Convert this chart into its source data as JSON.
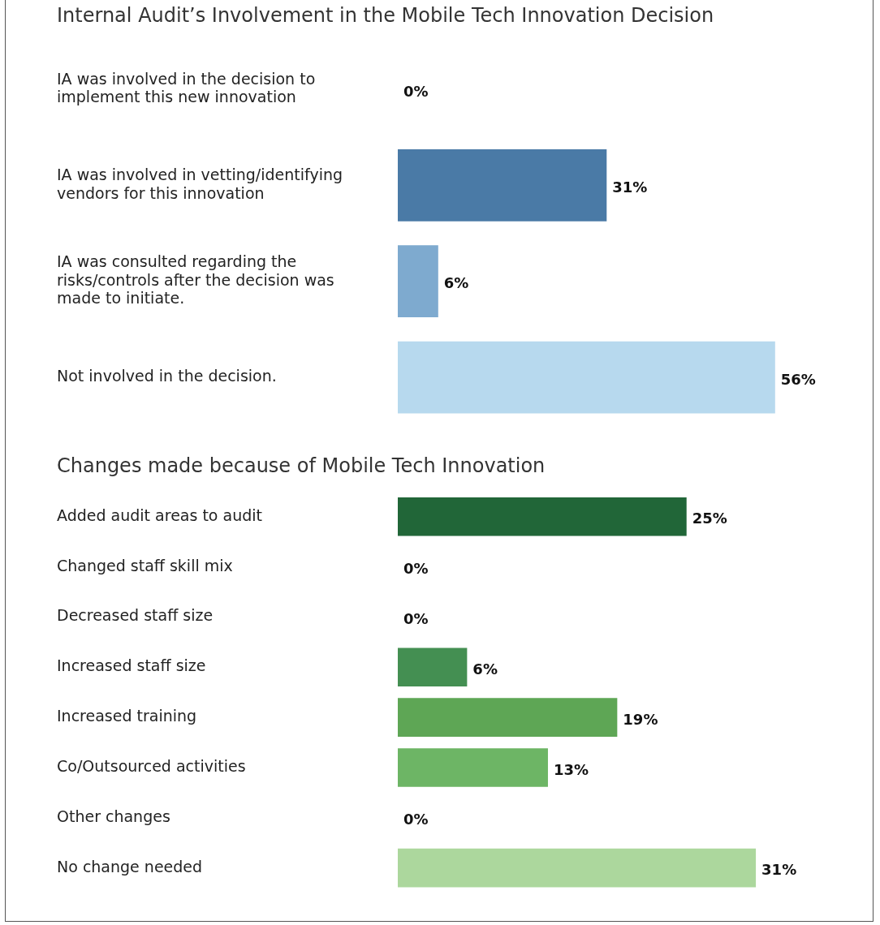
{
  "chart_data": [
    {
      "type": "bar",
      "orientation": "horizontal",
      "title": "Internal Audit’s Involvement in the Mobile Tech Innovation Decision",
      "categories": [
        "IA was involved in the decision to implement this new innovation",
        "IA was involved in vetting/identifying vendors for this innovation",
        "IA was consulted regarding the risks/controls after the decision was made to initiate.",
        "Not involved in the decision."
      ],
      "values": [
        0,
        31,
        6,
        56
      ],
      "value_labels": [
        "0%",
        "31%",
        "6%",
        "56%"
      ],
      "colors": [
        "#2a5783",
        "#4a7aa6",
        "#7eaacf",
        "#b7d9ee"
      ],
      "tick_labels": "y",
      "grid": false,
      "legend": false
    },
    {
      "type": "bar",
      "orientation": "horizontal",
      "title": "Changes made because of Mobile Tech Innovation",
      "categories": [
        "Added audit areas to audit",
        "Changed staff skill mix",
        "Decreased staff size",
        "Increased staff size",
        "Increased training",
        "Co/Outsourced activities",
        "Other changes",
        "No change needed"
      ],
      "values": [
        25,
        0,
        0,
        6,
        19,
        13,
        0,
        31
      ],
      "value_labels": [
        "25%",
        "0%",
        "0%",
        "6%",
        "19%",
        "13%",
        "0%",
        "31%"
      ],
      "colors": [
        "#216638",
        "#2f7a44",
        "#3a8648",
        "#448f52",
        "#5ea655",
        "#6db565",
        "#8cc67d",
        "#acd79d"
      ],
      "tick_labels": "y",
      "grid": false,
      "legend": false
    }
  ]
}
